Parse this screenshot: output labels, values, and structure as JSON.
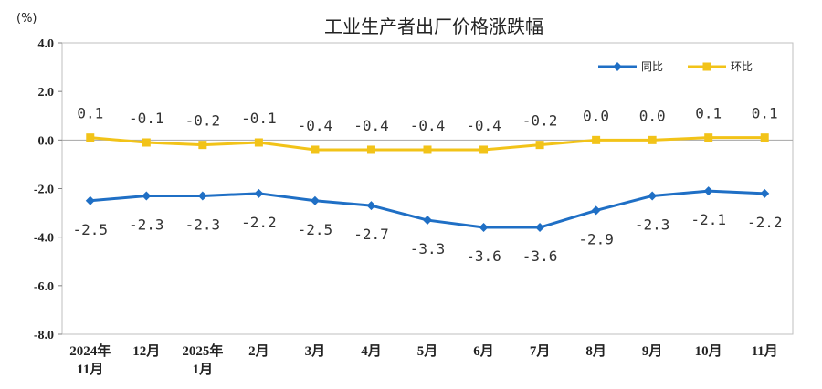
{
  "chart_data": {
    "type": "line",
    "title": "工业生产者出厂价格涨跌幅",
    "unit_label": "(%)",
    "categories": [
      [
        "2024年",
        "11月"
      ],
      [
        "12月"
      ],
      [
        "2025年",
        "1月"
      ],
      [
        "2月"
      ],
      [
        "3月"
      ],
      [
        "4月"
      ],
      [
        "5月"
      ],
      [
        "6月"
      ],
      [
        "7月"
      ],
      [
        "8月"
      ],
      [
        "9月"
      ],
      [
        "10月"
      ],
      [
        "11月"
      ]
    ],
    "series": [
      {
        "name": "同比",
        "color": "#1f6fc5",
        "marker": "diamond",
        "label_position": "below",
        "values": [
          -2.5,
          -2.3,
          -2.3,
          -2.2,
          -2.5,
          -2.7,
          -3.3,
          -3.6,
          -3.6,
          -2.9,
          -2.3,
          -2.1,
          -2.2
        ],
        "labels": [
          "-2.5",
          "-2.3",
          "-2.3",
          "-2.2",
          "-2.5",
          "-2.7",
          "-3.3",
          "-3.6",
          "-3.6",
          "-2.9",
          "-2.3",
          "-2.1",
          "-2.2"
        ]
      },
      {
        "name": "环比",
        "color": "#f2c318",
        "marker": "square",
        "label_position": "above",
        "values": [
          0.1,
          -0.1,
          -0.2,
          -0.1,
          -0.4,
          -0.4,
          -0.4,
          -0.4,
          -0.2,
          0.0,
          0.0,
          0.1,
          0.1
        ],
        "labels": [
          "0.1",
          "-0.1",
          "-0.2",
          "-0.1",
          "-0.4",
          "-0.4",
          "-0.4",
          "-0.4",
          "-0.2",
          "0.0",
          "0.0",
          "0.1",
          "0.1"
        ]
      }
    ],
    "ylim": [
      -8.0,
      4.0
    ],
    "yticks": [
      "4.0",
      "2.0",
      "0.0",
      "-2.0",
      "-4.0",
      "-6.0",
      "-8.0"
    ],
    "ytick_values": [
      4,
      2,
      0,
      -2,
      -4,
      -6,
      -8
    ],
    "legend_position": "top-right",
    "grid": false
  }
}
